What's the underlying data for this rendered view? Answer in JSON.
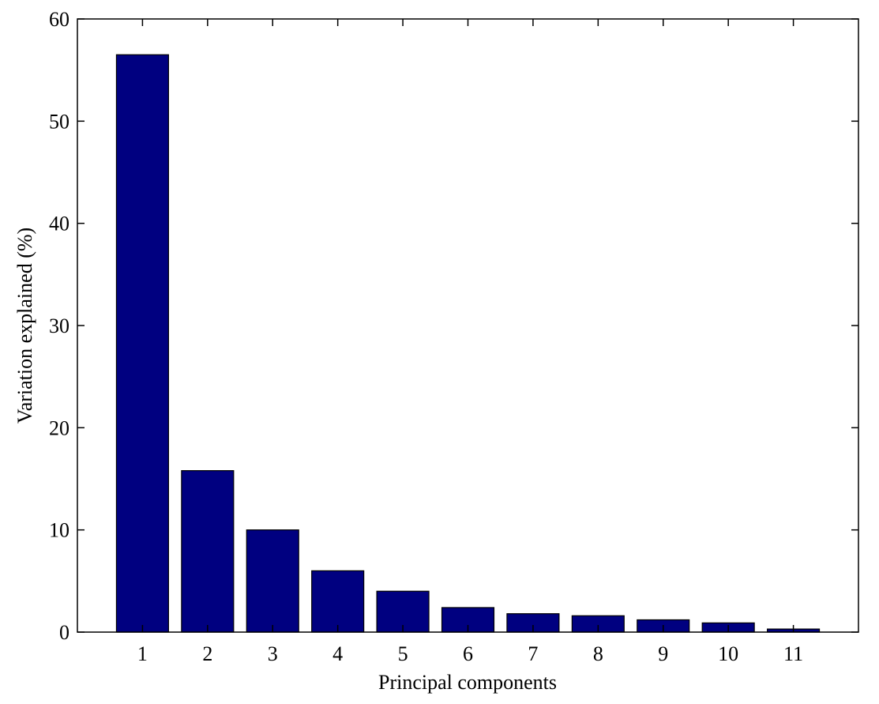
{
  "chart_data": {
    "type": "bar",
    "xlabel": "Principal components",
    "ylabel": "Variation explained (%)",
    "x": [
      1,
      2,
      3,
      4,
      5,
      6,
      7,
      8,
      9,
      10,
      11
    ],
    "values": [
      56.5,
      15.8,
      10.0,
      6.0,
      4.0,
      2.4,
      1.8,
      1.6,
      1.2,
      0.9,
      0.3
    ],
    "color": "#000080",
    "xlim": [
      0,
      12
    ],
    "xticks": [
      1,
      2,
      3,
      4,
      5,
      6,
      7,
      8,
      9,
      10,
      11
    ],
    "ylim": [
      0,
      60
    ],
    "yticks": [
      0,
      10,
      20,
      30,
      40,
      50,
      60
    ],
    "grid": false
  }
}
